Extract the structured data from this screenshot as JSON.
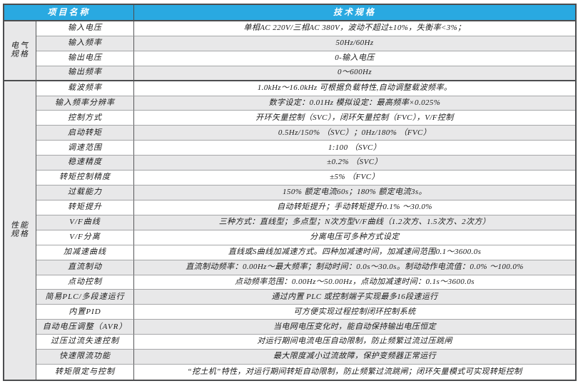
{
  "colors": {
    "header_bg": "#29a9e1",
    "shaded_row": "#e8e8e9",
    "border_dark": "#4c4d4f",
    "header_text": "#ffffff"
  },
  "table": {
    "headers": {
      "item": "项目名称",
      "spec": "技术规格"
    },
    "groups": [
      {
        "label": "电气\n规格",
        "rows": [
          {
            "item": "输入电压",
            "spec": "单相AC 220V/三相AC 380V，波动不超过±10%，失衡率<3%；",
            "shaded": false
          },
          {
            "item": "输入频率",
            "spec": "50Hz/60Hz",
            "shaded": true
          },
          {
            "item": "输出电压",
            "spec": "0-输入电压",
            "shaded": false
          },
          {
            "item": "输出频率",
            "spec": "0～600Hz",
            "shaded": true
          }
        ]
      },
      {
        "label": "性能\n规格",
        "rows": [
          {
            "item": "载波频率",
            "spec": "1.0kHz～16.0kHz 可根据负载特性,自动调整载波频率。",
            "shaded": false
          },
          {
            "item": "输入频率分辨率",
            "spec": "数字设定：0.01Hz 模拟设定：最高频率×0.025%",
            "shaded": true
          },
          {
            "item": "控制方式",
            "spec": "开环矢量控制（SVC），闭环矢量控制（FVC），V/F控制",
            "shaded": false
          },
          {
            "item": "启动转矩",
            "spec": "0.5Hz/150% （SVC）；0Hz/180% （FVC）",
            "shaded": true
          },
          {
            "item": "调速范围",
            "spec": "1:100 （SVC）",
            "shaded": false
          },
          {
            "item": "稳速精度",
            "spec": "±0.2% （SVC）",
            "shaded": true
          },
          {
            "item": "转矩控制精度",
            "spec": "±5% （FVC）",
            "shaded": false
          },
          {
            "item": "过载能力",
            "spec": "150% 额定电流60s；180% 额定电流3s。",
            "shaded": true
          },
          {
            "item": "转矩提升",
            "spec": "自动转矩提升；手动转矩提升0.1% ～30.0%",
            "shaded": false
          },
          {
            "item": "V/F曲线",
            "spec": "三种方式：直线型；多点型；N次方型V/F曲线（1.2次方、1.5次方、2次方）",
            "shaded": true
          },
          {
            "item": "V/F分离",
            "spec": "分离电压可多种方式设定",
            "shaded": false
          },
          {
            "item": "加减速曲线",
            "spec": "直线或S曲线加减速方式。四种加减速时间，加减速间范围0.1～3600.0s",
            "shaded": false
          },
          {
            "item": "直流制动",
            "spec": "直流制动频率：0.00Hz～最大频率；制动时间：0.0s～30.0s。制动动作电流值：0.0% ～100.0%",
            "shaded": true
          },
          {
            "item": "点动控制",
            "spec": "点动频率范围：0.00Hz～50.00Hz，点动加减速时间：0.1s～3600.0s",
            "shaded": false
          },
          {
            "item": "简易PLC/多段速运行",
            "spec": "通过内置 PLC 或控制端子实现最多16段速运行",
            "shaded": true
          },
          {
            "item": "内置PID",
            "spec": "可方便实现过程控制闭环控制系统",
            "shaded": false
          },
          {
            "item": "自动电压调整（AVR）",
            "spec": "当电网电压变化时，能自动保持输出电压恒定",
            "shaded": true
          },
          {
            "item": "过压过流失速控制",
            "spec": "对运行期间电流电压自动限制，防止频繁过流过压跳闸",
            "shaded": false
          },
          {
            "item": "快速限流功能",
            "spec": "最大限度减小过流故障，保护变频器正常运行",
            "shaded": true
          },
          {
            "item": "转矩限定与控制",
            "spec": "“挖土机”特性，对运行期间转矩自动限制，防止频繁过流跳闸；闭环矢量模式可实现转矩控制",
            "shaded": false
          }
        ]
      }
    ]
  }
}
